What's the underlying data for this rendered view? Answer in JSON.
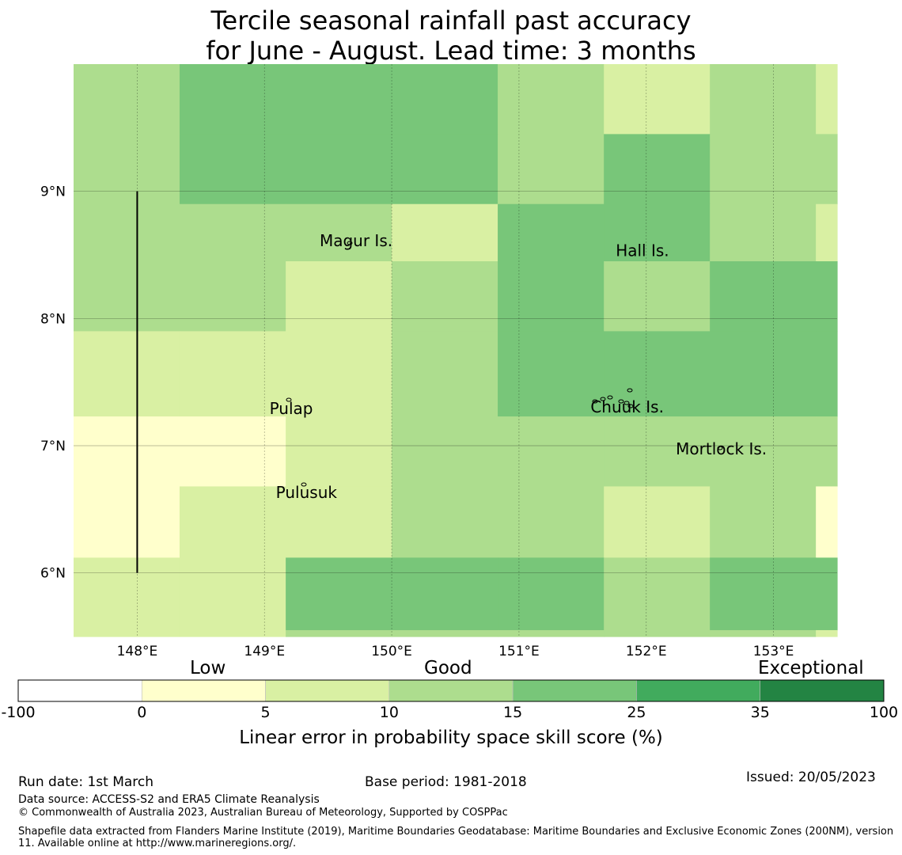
{
  "title": {
    "line1": "Tercile seasonal rainfall past accuracy",
    "line2": "for June - August. Lead time: 3 months"
  },
  "map": {
    "lon_range": [
      147.5,
      153.5
    ],
    "lat_range": [
      5.5,
      10.0
    ],
    "x_ticks": [
      {
        "value": 148,
        "label": "148°E"
      },
      {
        "value": 149,
        "label": "149°E"
      },
      {
        "value": 150,
        "label": "150°E"
      },
      {
        "value": 151,
        "label": "151°E"
      },
      {
        "value": 152,
        "label": "152°E"
      },
      {
        "value": 153,
        "label": "153°E"
      }
    ],
    "y_ticks": [
      {
        "value": 9,
        "label": "9°N"
      },
      {
        "value": 8,
        "label": "8°N"
      },
      {
        "value": 7,
        "label": "7°N"
      },
      {
        "value": 6,
        "label": "6°N"
      }
    ],
    "boundary_line": {
      "lon": 148,
      "lat_from": 6,
      "lat_to": 9
    },
    "grid": {
      "col_edges_lon": [
        147.5,
        148.333,
        149.167,
        150.0,
        150.833,
        151.667,
        152.5,
        153.333,
        153.5
      ],
      "row_edges_lat": [
        10.0,
        9.45,
        8.9,
        8.45,
        7.9,
        7.23,
        6.68,
        6.12,
        5.55,
        5.5
      ],
      "cells": [
        [
          3,
          4,
          4,
          4,
          3,
          2,
          3,
          2
        ],
        [
          3,
          4,
          4,
          4,
          3,
          4,
          3,
          3
        ],
        [
          3,
          3,
          3,
          2,
          4,
          4,
          3,
          2
        ],
        [
          3,
          3,
          2,
          3,
          4,
          3,
          4,
          4
        ],
        [
          2,
          2,
          2,
          3,
          4,
          4,
          4,
          4
        ],
        [
          1,
          1,
          2,
          3,
          3,
          3,
          3,
          3
        ],
        [
          1,
          2,
          2,
          3,
          3,
          2,
          3,
          1
        ],
        [
          2,
          2,
          4,
          4,
          4,
          3,
          4,
          4
        ],
        [
          2,
          2,
          3,
          3,
          3,
          3,
          3,
          2
        ]
      ]
    },
    "places": [
      {
        "name": "Magur Is.",
        "lon": 149.72,
        "lat": 8.57
      },
      {
        "name": "Hall Is.",
        "lon": 151.97,
        "lat": 8.49
      },
      {
        "name": "Pulap",
        "lon": 149.21,
        "lat": 7.25
      },
      {
        "name": "Chuuk Is.",
        "lon": 151.85,
        "lat": 7.26
      },
      {
        "name": "Mortlock Is.",
        "lon": 152.59,
        "lat": 6.93
      },
      {
        "name": "Pulusuk",
        "lon": 149.33,
        "lat": 6.59
      }
    ]
  },
  "colorbar": {
    "categories": [
      "Low",
      "Good",
      "Exceptional"
    ],
    "bins": [
      {
        "from": -100,
        "to": 0,
        "color": "#ffffff"
      },
      {
        "from": 0,
        "to": 5,
        "color": "#ffffcc"
      },
      {
        "from": 5,
        "to": 10,
        "color": "#d9f0a3"
      },
      {
        "from": 10,
        "to": 15,
        "color": "#addd8e"
      },
      {
        "from": 15,
        "to": 25,
        "color": "#78c679"
      },
      {
        "from": 25,
        "to": 35,
        "color": "#41ab5d"
      },
      {
        "from": 35,
        "to": 100,
        "color": "#238443"
      }
    ],
    "ticks": [
      "-100",
      "0",
      "5",
      "10",
      "15",
      "25",
      "35",
      "100"
    ],
    "title": "Linear error in probability space skill score (%)"
  },
  "footer": {
    "run_date": "Run date: 1st March",
    "base_period": "Base period: 1981-2018",
    "issued": "Issued: 20/05/2023",
    "data_source": "Data source: ACCESS-S2 and ERA5 Climate Reanalysis",
    "copyright": "© Commonwealth of Australia 2023, Australian Bureau of Meteorology, Supported by COSPPac",
    "shapefile": "Shapefile data extracted from Flanders Marine Institute (2019), Maritime Boundaries Geodatabase: Maritime Boundaries and Exclusive Economic Zones (200NM), version 11. Available online at http://www.marineregions.org/."
  }
}
